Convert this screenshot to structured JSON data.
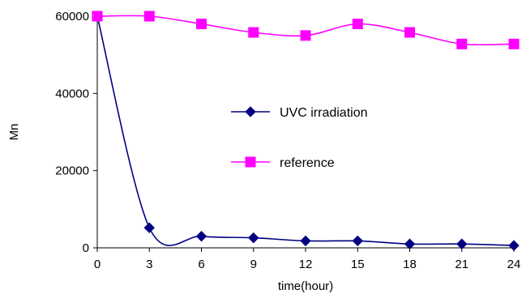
{
  "chart_data": {
    "type": "line",
    "title": "",
    "xlabel": "time(hour)",
    "ylabel": "Mn",
    "x": [
      0,
      3,
      6,
      9,
      12,
      15,
      18,
      21,
      24
    ],
    "x_ticks": [
      "0",
      "3",
      "6",
      "9",
      "12",
      "15",
      "18",
      "21",
      "24"
    ],
    "y_ticks": [
      "0",
      "20000",
      "40000",
      "60000"
    ],
    "xlim": [
      0,
      24
    ],
    "ylim": [
      0,
      60000
    ],
    "grid": false,
    "smooth": true,
    "legend_position": "center",
    "series": [
      {
        "name": "UVC irradiation",
        "color": "#000080",
        "marker": "diamond",
        "values": [
          60000,
          5200,
          3000,
          2600,
          1800,
          1800,
          1000,
          1000,
          600
        ]
      },
      {
        "name": "reference",
        "color": "#ff00ff",
        "marker": "square",
        "values": [
          60000,
          60000,
          58000,
          55800,
          55000,
          58000,
          55800,
          52800,
          52800
        ]
      }
    ]
  }
}
